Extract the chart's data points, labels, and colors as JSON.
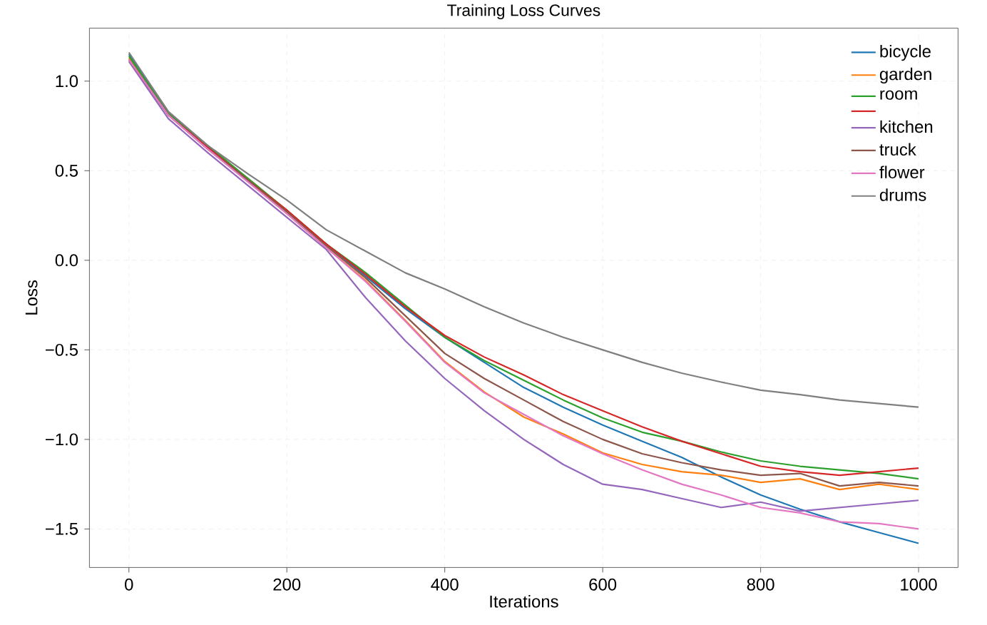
{
  "chart_data": {
    "type": "line",
    "title": "Training Loss Curves",
    "xlabel": "Iterations",
    "ylabel": "Loss",
    "x": [
      0,
      50,
      100,
      150,
      200,
      250,
      300,
      350,
      400,
      450,
      500,
      550,
      600,
      650,
      700,
      750,
      800,
      850,
      900,
      950,
      1000
    ],
    "series": [
      {
        "name": "bicycle",
        "color": "#1f77b4",
        "values": [
          1.15,
          0.82,
          0.63,
          0.45,
          0.27,
          0.09,
          -0.09,
          -0.27,
          -0.43,
          -0.57,
          -0.71,
          -0.82,
          -0.92,
          -1.01,
          -1.1,
          -1.21,
          -1.31,
          -1.39,
          -1.46,
          -1.52,
          -1.58
        ]
      },
      {
        "name": "garden",
        "color": "#ff7f0e",
        "values": [
          1.13,
          0.81,
          0.62,
          0.445,
          0.26,
          0.07,
          -0.115,
          -0.335,
          -0.565,
          -0.735,
          -0.875,
          -0.97,
          -1.075,
          -1.14,
          -1.18,
          -1.2,
          -1.24,
          -1.22,
          -1.28,
          -1.25,
          -1.28
        ]
      },
      {
        "name": "room",
        "color": "#2ca02c",
        "values": [
          1.14,
          0.82,
          0.64,
          0.46,
          0.28,
          0.09,
          -0.07,
          -0.25,
          -0.43,
          -0.56,
          -0.67,
          -0.78,
          -0.88,
          -0.96,
          -1.01,
          -1.07,
          -1.12,
          -1.15,
          -1.17,
          -1.19,
          -1.22
        ]
      },
      {
        "color": "#d62728",
        "values": [
          1.12,
          0.81,
          0.63,
          0.45,
          0.28,
          0.09,
          -0.08,
          -0.26,
          -0.42,
          -0.54,
          -0.64,
          -0.75,
          -0.84,
          -0.93,
          -1.01,
          -1.08,
          -1.15,
          -1.18,
          -1.2,
          -1.18,
          -1.16
        ]
      },
      {
        "name": "kitchen",
        "color": "#9467bd",
        "values": [
          1.11,
          0.79,
          0.6,
          0.42,
          0.24,
          0.06,
          -0.21,
          -0.45,
          -0.66,
          -0.84,
          -1.0,
          -1.14,
          -1.25,
          -1.28,
          -1.33,
          -1.38,
          -1.35,
          -1.4,
          -1.38,
          -1.36,
          -1.34
        ]
      },
      {
        "name": "truck",
        "color": "#8c564b",
        "values": [
          1.12,
          0.81,
          0.62,
          0.45,
          0.27,
          0.08,
          -0.1,
          -0.31,
          -0.52,
          -0.66,
          -0.78,
          -0.9,
          -1.0,
          -1.08,
          -1.13,
          -1.17,
          -1.2,
          -1.19,
          -1.26,
          -1.24,
          -1.26
        ]
      },
      {
        "name": "flower",
        "color": "#e377c2",
        "values": [
          1.12,
          0.81,
          0.62,
          0.44,
          0.26,
          0.07,
          -0.12,
          -0.34,
          -0.57,
          -0.74,
          -0.86,
          -0.98,
          -1.08,
          -1.17,
          -1.25,
          -1.31,
          -1.38,
          -1.41,
          -1.46,
          -1.47,
          -1.5
        ]
      },
      {
        "name": "drums",
        "color": "#7f7f7f",
        "values": [
          1.16,
          0.83,
          0.64,
          0.485,
          0.336,
          0.17,
          0.05,
          -0.07,
          -0.16,
          -0.26,
          -0.35,
          -0.43,
          -0.5,
          -0.57,
          -0.63,
          -0.68,
          -0.725,
          -0.75,
          -0.78,
          -0.8,
          -0.82
        ]
      }
    ],
    "xlim": [
      -50,
      1050
    ],
    "ylim": [
      -1.715,
      1.296
    ],
    "xticks": [
      0,
      200,
      400,
      600,
      800,
      1000
    ],
    "yticks": [
      {
        "value": -1.5,
        "label": "−1.5"
      },
      {
        "value": -1.0,
        "label": "−1.0"
      },
      {
        "value": -0.5,
        "label": "−0.5"
      },
      {
        "value": 0.0,
        "label": "0.0"
      },
      {
        "value": 0.5,
        "label": "0.5"
      },
      {
        "value": 1.0,
        "label": "1.0"
      }
    ],
    "grid": true,
    "legend": "top right",
    "marker": "none",
    "line_style": "solid"
  }
}
